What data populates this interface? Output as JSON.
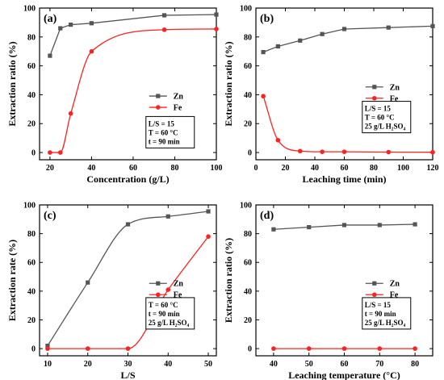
{
  "colors": {
    "zn": "#555555",
    "fe": "#ff2020",
    "axis": "#000000"
  },
  "chart_data": [
    {
      "type": "line",
      "panel_label": "(a)",
      "xlabel": "Concentration (g/L)",
      "ylabel": "Extraction ratio (%)",
      "xlim": [
        15,
        100
      ],
      "ylim": [
        -5,
        100
      ],
      "xticks": [
        20,
        40,
        60,
        80,
        100
      ],
      "yticks": [
        0,
        20,
        40,
        60,
        80,
        100
      ],
      "grid": false,
      "legend_position": "right-middle",
      "conditions": [
        "L/S = 15",
        "T = 60 °C",
        "t = 90 min"
      ],
      "series": [
        {
          "name": "Zn",
          "marker": "square",
          "x": [
            20,
            25,
            30,
            40,
            75,
            100
          ],
          "y": [
            67,
            86,
            88.5,
            89.5,
            95,
            95.5
          ],
          "fit": false
        },
        {
          "name": "Fe",
          "marker": "circle",
          "x": [
            20,
            25,
            30,
            40,
            75,
            100
          ],
          "y": [
            0,
            0,
            27,
            70,
            85,
            85.5
          ],
          "fit": true
        }
      ]
    },
    {
      "type": "line",
      "panel_label": "(b)",
      "xlabel": "Leaching time (min)",
      "ylabel": "Extraction ratio (%)",
      "xlim": [
        0,
        120
      ],
      "ylim": [
        -5,
        100
      ],
      "xticks": [
        0,
        20,
        40,
        60,
        80,
        100,
        120
      ],
      "yticks": [
        0,
        20,
        40,
        60,
        80,
        100
      ],
      "grid": false,
      "legend_position": "right-middle",
      "conditions": [
        "L/S = 15",
        "T = 60 °C",
        "25 g/L H₂SO₄"
      ],
      "series": [
        {
          "name": "Zn",
          "marker": "square",
          "x": [
            5,
            15,
            30,
            45,
            60,
            90,
            120
          ],
          "y": [
            69.5,
            73.5,
            77.5,
            82,
            85.5,
            86.5,
            87.5
          ],
          "fit": false
        },
        {
          "name": "Fe",
          "marker": "circle",
          "x": [
            5,
            15,
            30,
            45,
            60,
            90,
            120
          ],
          "y": [
            39,
            8.5,
            1,
            0.5,
            0.5,
            0.3,
            0.2
          ],
          "fit": true
        }
      ]
    },
    {
      "type": "line",
      "panel_label": "(c)",
      "xlabel": "L/S",
      "ylabel": "Extraction rate (%)",
      "xlim": [
        8,
        52
      ],
      "ylim": [
        -5,
        100
      ],
      "xticks": [
        10,
        20,
        30,
        40,
        50
      ],
      "yticks": [
        0,
        20,
        40,
        60,
        80,
        100
      ],
      "grid": false,
      "legend_position": "right-middle",
      "conditions": [
        "T = 60 °C",
        "t = 90 min",
        "25 g/L H₂SO₄"
      ],
      "series": [
        {
          "name": "Zn",
          "marker": "square",
          "x": [
            10,
            20,
            30,
            40,
            50
          ],
          "y": [
            2,
            46,
            86.5,
            92,
            95.5
          ],
          "fit": true
        },
        {
          "name": "Fe",
          "marker": "circle",
          "x": [
            10,
            20,
            30,
            40,
            50
          ],
          "y": [
            0,
            0,
            0,
            41,
            78
          ],
          "fit": true
        }
      ]
    },
    {
      "type": "line",
      "panel_label": "(d)",
      "xlabel": "Leaching temperature (°C)",
      "ylabel": "Extraction ratio (%)",
      "xlim": [
        35,
        85
      ],
      "ylim": [
        -5,
        100
      ],
      "xticks": [
        40,
        50,
        60,
        70,
        80
      ],
      "yticks": [
        0,
        20,
        40,
        60,
        80,
        100
      ],
      "grid": false,
      "legend_position": "right-middle",
      "conditions": [
        "L/S = 15",
        "t = 90 min",
        "25 g/L H₂SO₄"
      ],
      "series": [
        {
          "name": "Zn",
          "marker": "square",
          "x": [
            40,
            50,
            60,
            70,
            80
          ],
          "y": [
            83,
            84.5,
            86,
            86,
            86.5
          ],
          "fit": false
        },
        {
          "name": "Fe",
          "marker": "circle",
          "x": [
            40,
            50,
            60,
            70,
            80
          ],
          "y": [
            0,
            0,
            0,
            0,
            0
          ],
          "fit": false
        }
      ]
    }
  ]
}
